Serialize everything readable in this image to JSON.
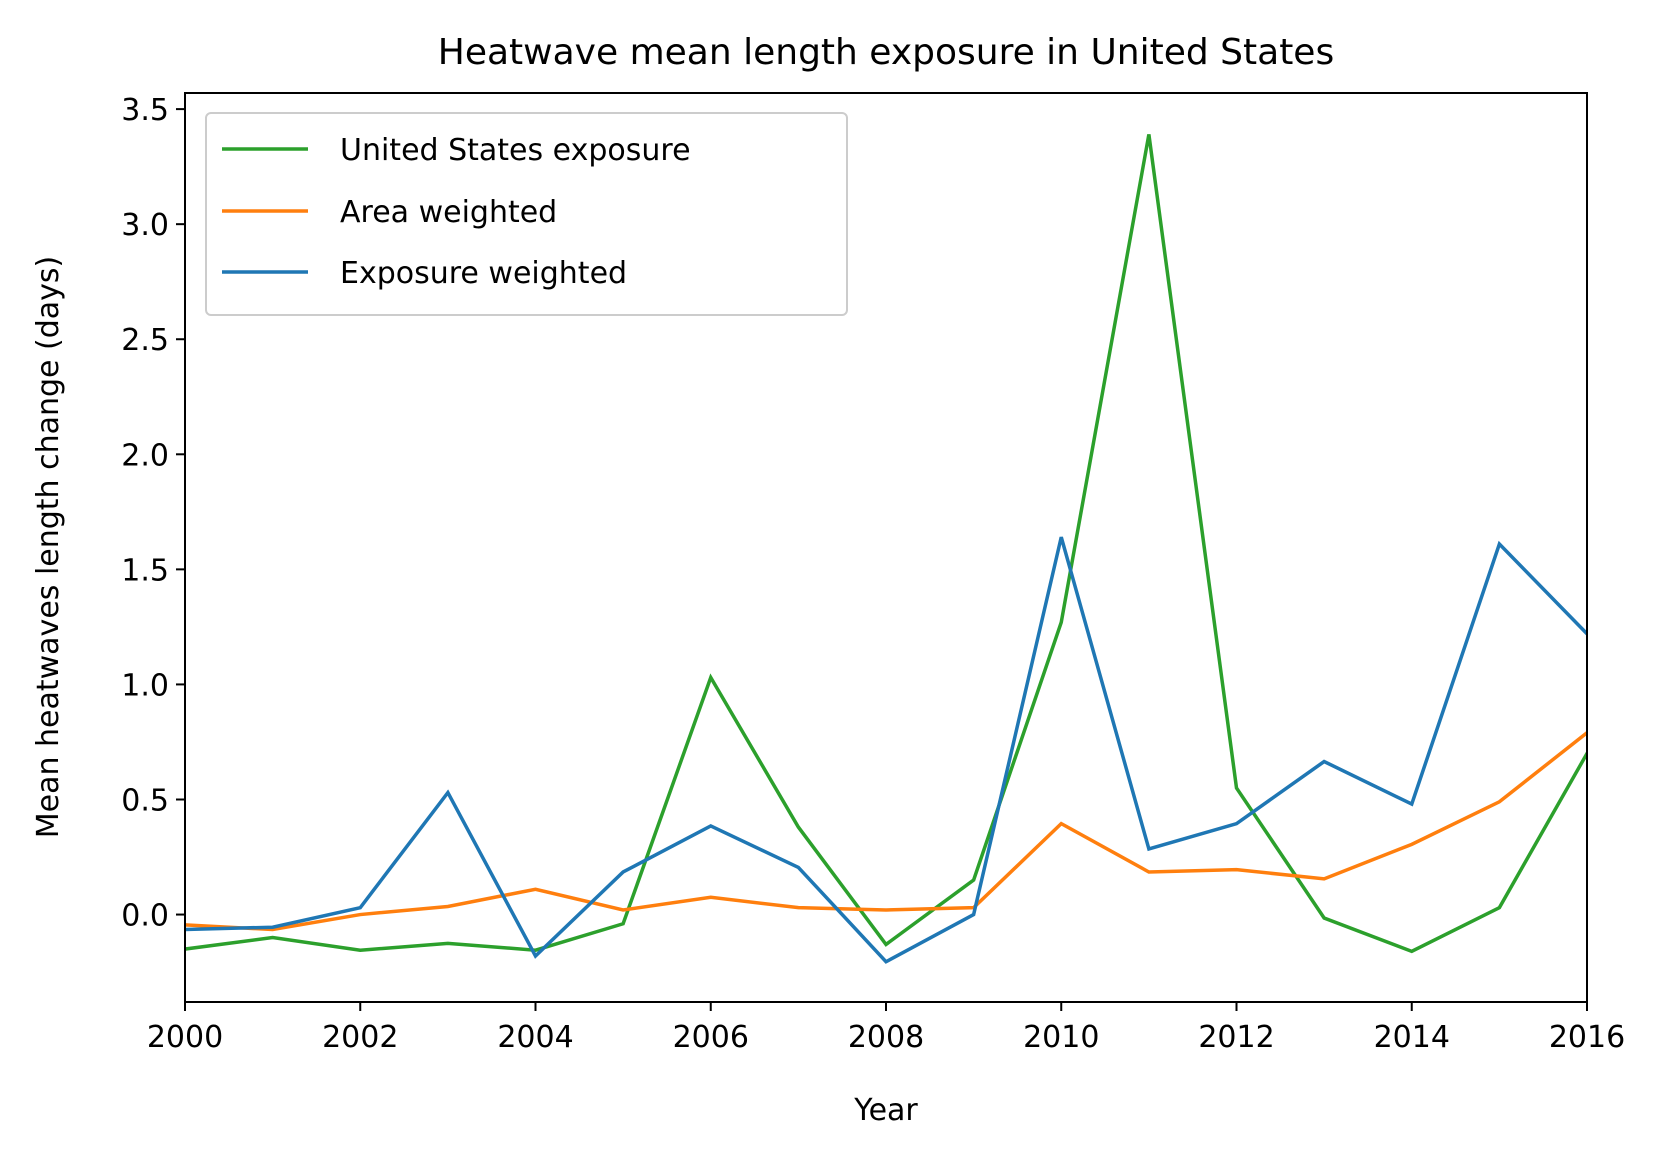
{
  "chart_data": {
    "type": "line",
    "title": "Heatwave mean length exposure in United States",
    "xlabel": "Year",
    "ylabel": "Mean heatwaves length change (days)",
    "xlim": [
      2000,
      2016
    ],
    "ylim": [
      -0.38,
      3.57
    ],
    "xticks": [
      2000,
      2002,
      2004,
      2006,
      2008,
      2010,
      2012,
      2014,
      2016
    ],
    "xtick_labels": [
      "2000",
      "2002",
      "2004",
      "2006",
      "2008",
      "2010",
      "2012",
      "2014",
      "2016"
    ],
    "yticks": [
      0.0,
      0.5,
      1.0,
      1.5,
      2.0,
      2.5,
      3.0,
      3.5
    ],
    "ytick_labels": [
      "0.0",
      "0.5",
      "1.0",
      "1.5",
      "2.0",
      "2.5",
      "3.0",
      "3.5"
    ],
    "grid": false,
    "legend_position": "top-left",
    "x": [
      2000,
      2001,
      2002,
      2003,
      2004,
      2005,
      2006,
      2007,
      2008,
      2009,
      2010,
      2011,
      2012,
      2013,
      2014,
      2015,
      2016
    ],
    "series": [
      {
        "name": "United States exposure",
        "color": "#2ca02c",
        "values": [
          -0.15,
          -0.1,
          -0.155,
          -0.125,
          -0.155,
          -0.04,
          1.03,
          0.38,
          -0.13,
          0.15,
          1.27,
          3.39,
          0.55,
          -0.015,
          -0.16,
          0.03,
          0.7
        ]
      },
      {
        "name": "Area weighted",
        "color": "#ff7f0e",
        "values": [
          -0.045,
          -0.065,
          0.0,
          0.035,
          0.11,
          0.02,
          0.075,
          0.03,
          0.02,
          0.03,
          0.395,
          0.185,
          0.195,
          0.155,
          0.305,
          0.49,
          0.79
        ]
      },
      {
        "name": "Exposure weighted",
        "color": "#1f77b4",
        "values": [
          -0.065,
          -0.055,
          0.03,
          0.53,
          -0.18,
          0.185,
          0.385,
          0.205,
          -0.205,
          0.0,
          1.64,
          0.285,
          0.395,
          0.665,
          0.48,
          1.61,
          1.22
        ]
      }
    ]
  }
}
